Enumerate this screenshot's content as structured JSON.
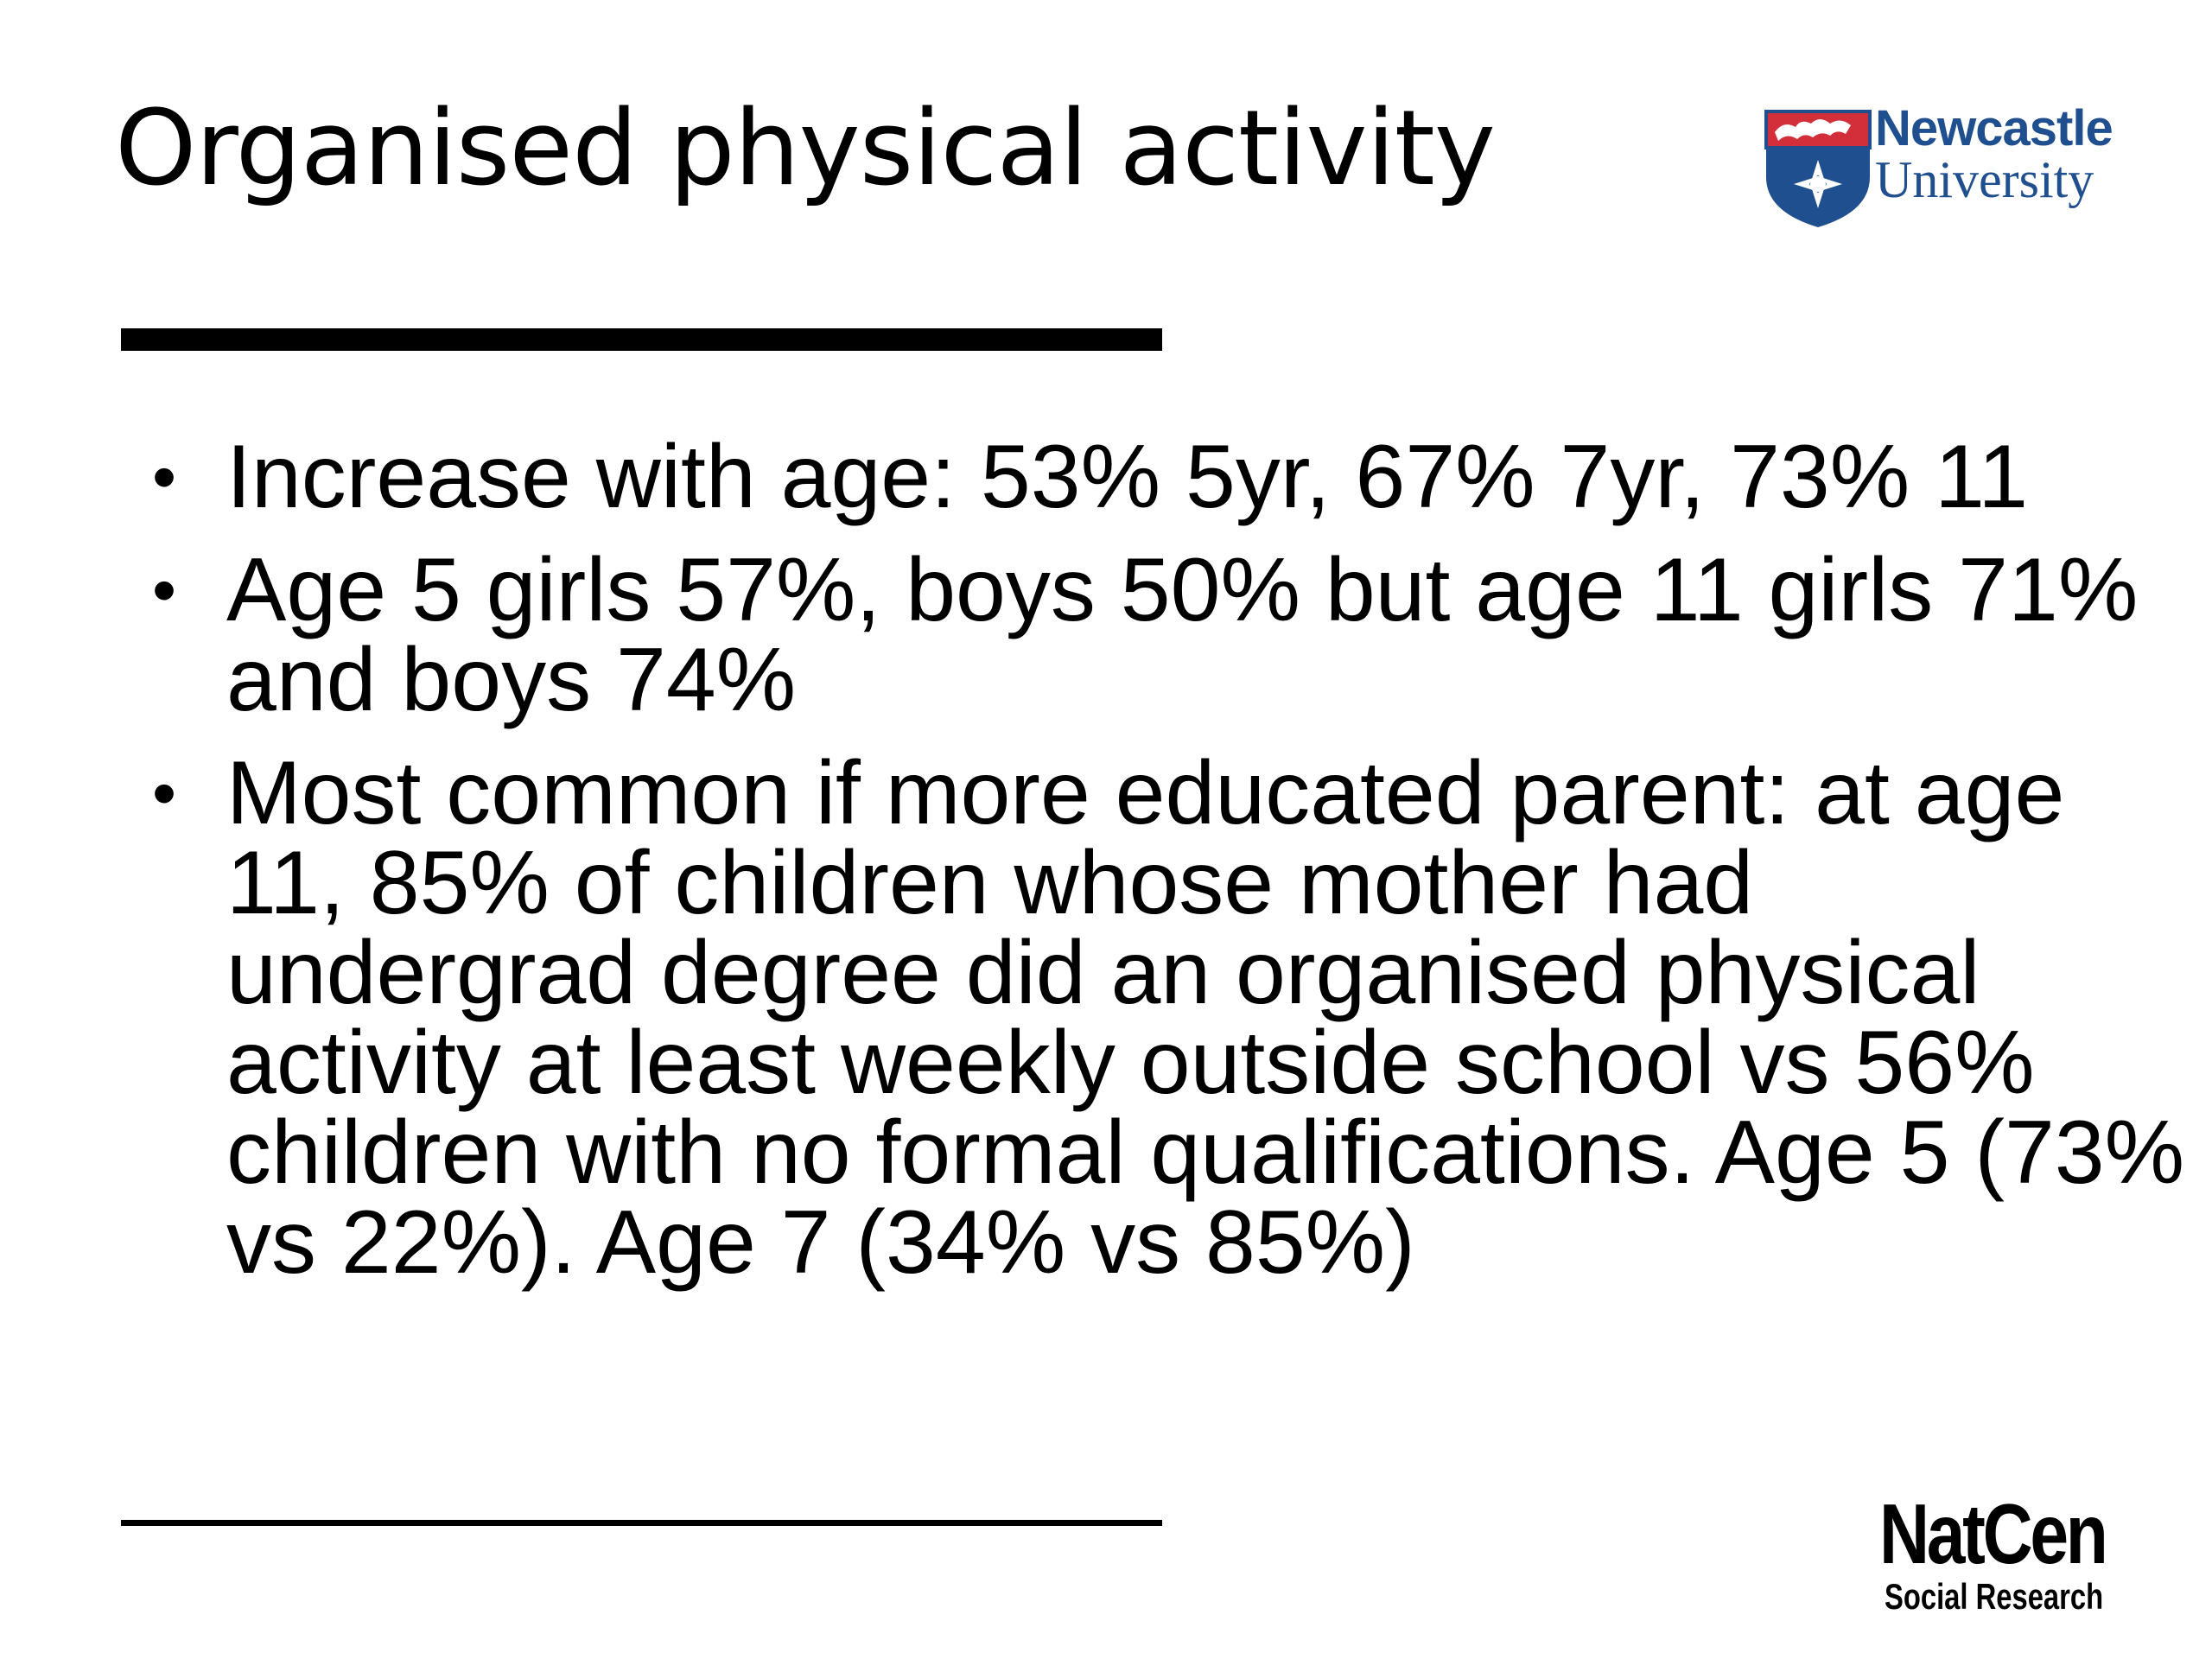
{
  "slide": {
    "title": "Organised physical activity",
    "bullets": [
      {
        "text": "Increase with age: 53% 5yr, 67% 7yr, 73% 11"
      },
      {
        "text": "Age 5 girls 57%, boys 50% but age 11 girls 71% and boys 74%"
      },
      {
        "text": "Most common if more educated parent: at age 11, 85% of children whose mother had undergrad degree did an organised physical activity at least weekly outside school vs 56% children with no formal qualifications. Age 5 (73% vs 22%). Age 7 (34% vs 85%)"
      }
    ],
    "bullet_marker": "•"
  },
  "logos": {
    "newcastle": {
      "line1": "Newcastle",
      "line2": "University",
      "icon": "university-shield-icon",
      "colors": {
        "text": "#1f4f8f",
        "shield": "#1f4f8f",
        "banner": "#d32f3a"
      }
    },
    "natcen": {
      "line1": "NatCen",
      "line2": "Social Research"
    }
  }
}
